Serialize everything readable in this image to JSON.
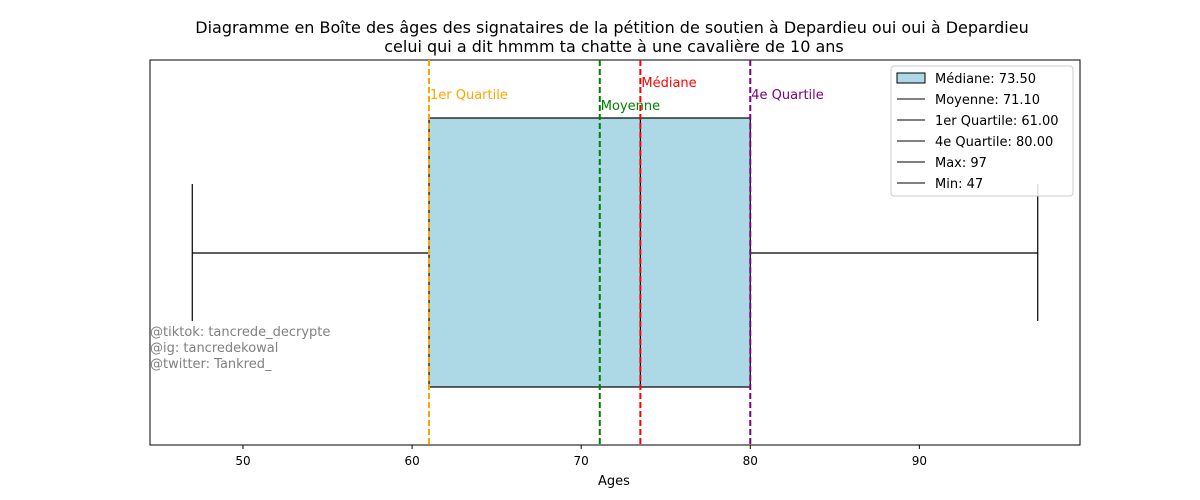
{
  "chart_data": {
    "type": "box",
    "title_line1": "Diagramme en Boîte des âges des signataires de la pétition de soutien à Depardieu oui oui à Depardieu",
    "title_line2": "celui qui a dit hmmm ta chatte à une cavalière de 10 ans",
    "xlabel": "Ages",
    "xlim": [
      44.5,
      99.5
    ],
    "xticks": [
      50,
      60,
      70,
      80,
      90
    ],
    "xtick_labels": [
      "50",
      "60",
      "70",
      "80",
      "90"
    ],
    "grid": false,
    "orientation": "horizontal",
    "stats": {
      "min": 47,
      "q1": 61.0,
      "median": 73.5,
      "mean": 71.1,
      "q3": 80.0,
      "max": 97
    },
    "vlines": [
      {
        "key": "q1",
        "label": "1er Quartile",
        "color": "#ffa500"
      },
      {
        "key": "mean",
        "label": "Moyenne",
        "color": "#008000"
      },
      {
        "key": "median",
        "label": "Médiane",
        "color": "#ff0000"
      },
      {
        "key": "q3",
        "label": "4e Quartile",
        "color": "#800080"
      }
    ],
    "box_color": "#add8e6",
    "legend_position": "top-right",
    "legend": [
      "Médiane: 73.50",
      "Moyenne: 71.10",
      "1er Quartile: 61.00",
      "4e Quartile: 80.00",
      "Max: 97",
      "Min: 47"
    ],
    "credits": [
      "@tiktok: tancrede_decrypte",
      "@ig: tancredekowal",
      "@twitter: Tankred_"
    ],
    "credits_color": "#808080"
  }
}
